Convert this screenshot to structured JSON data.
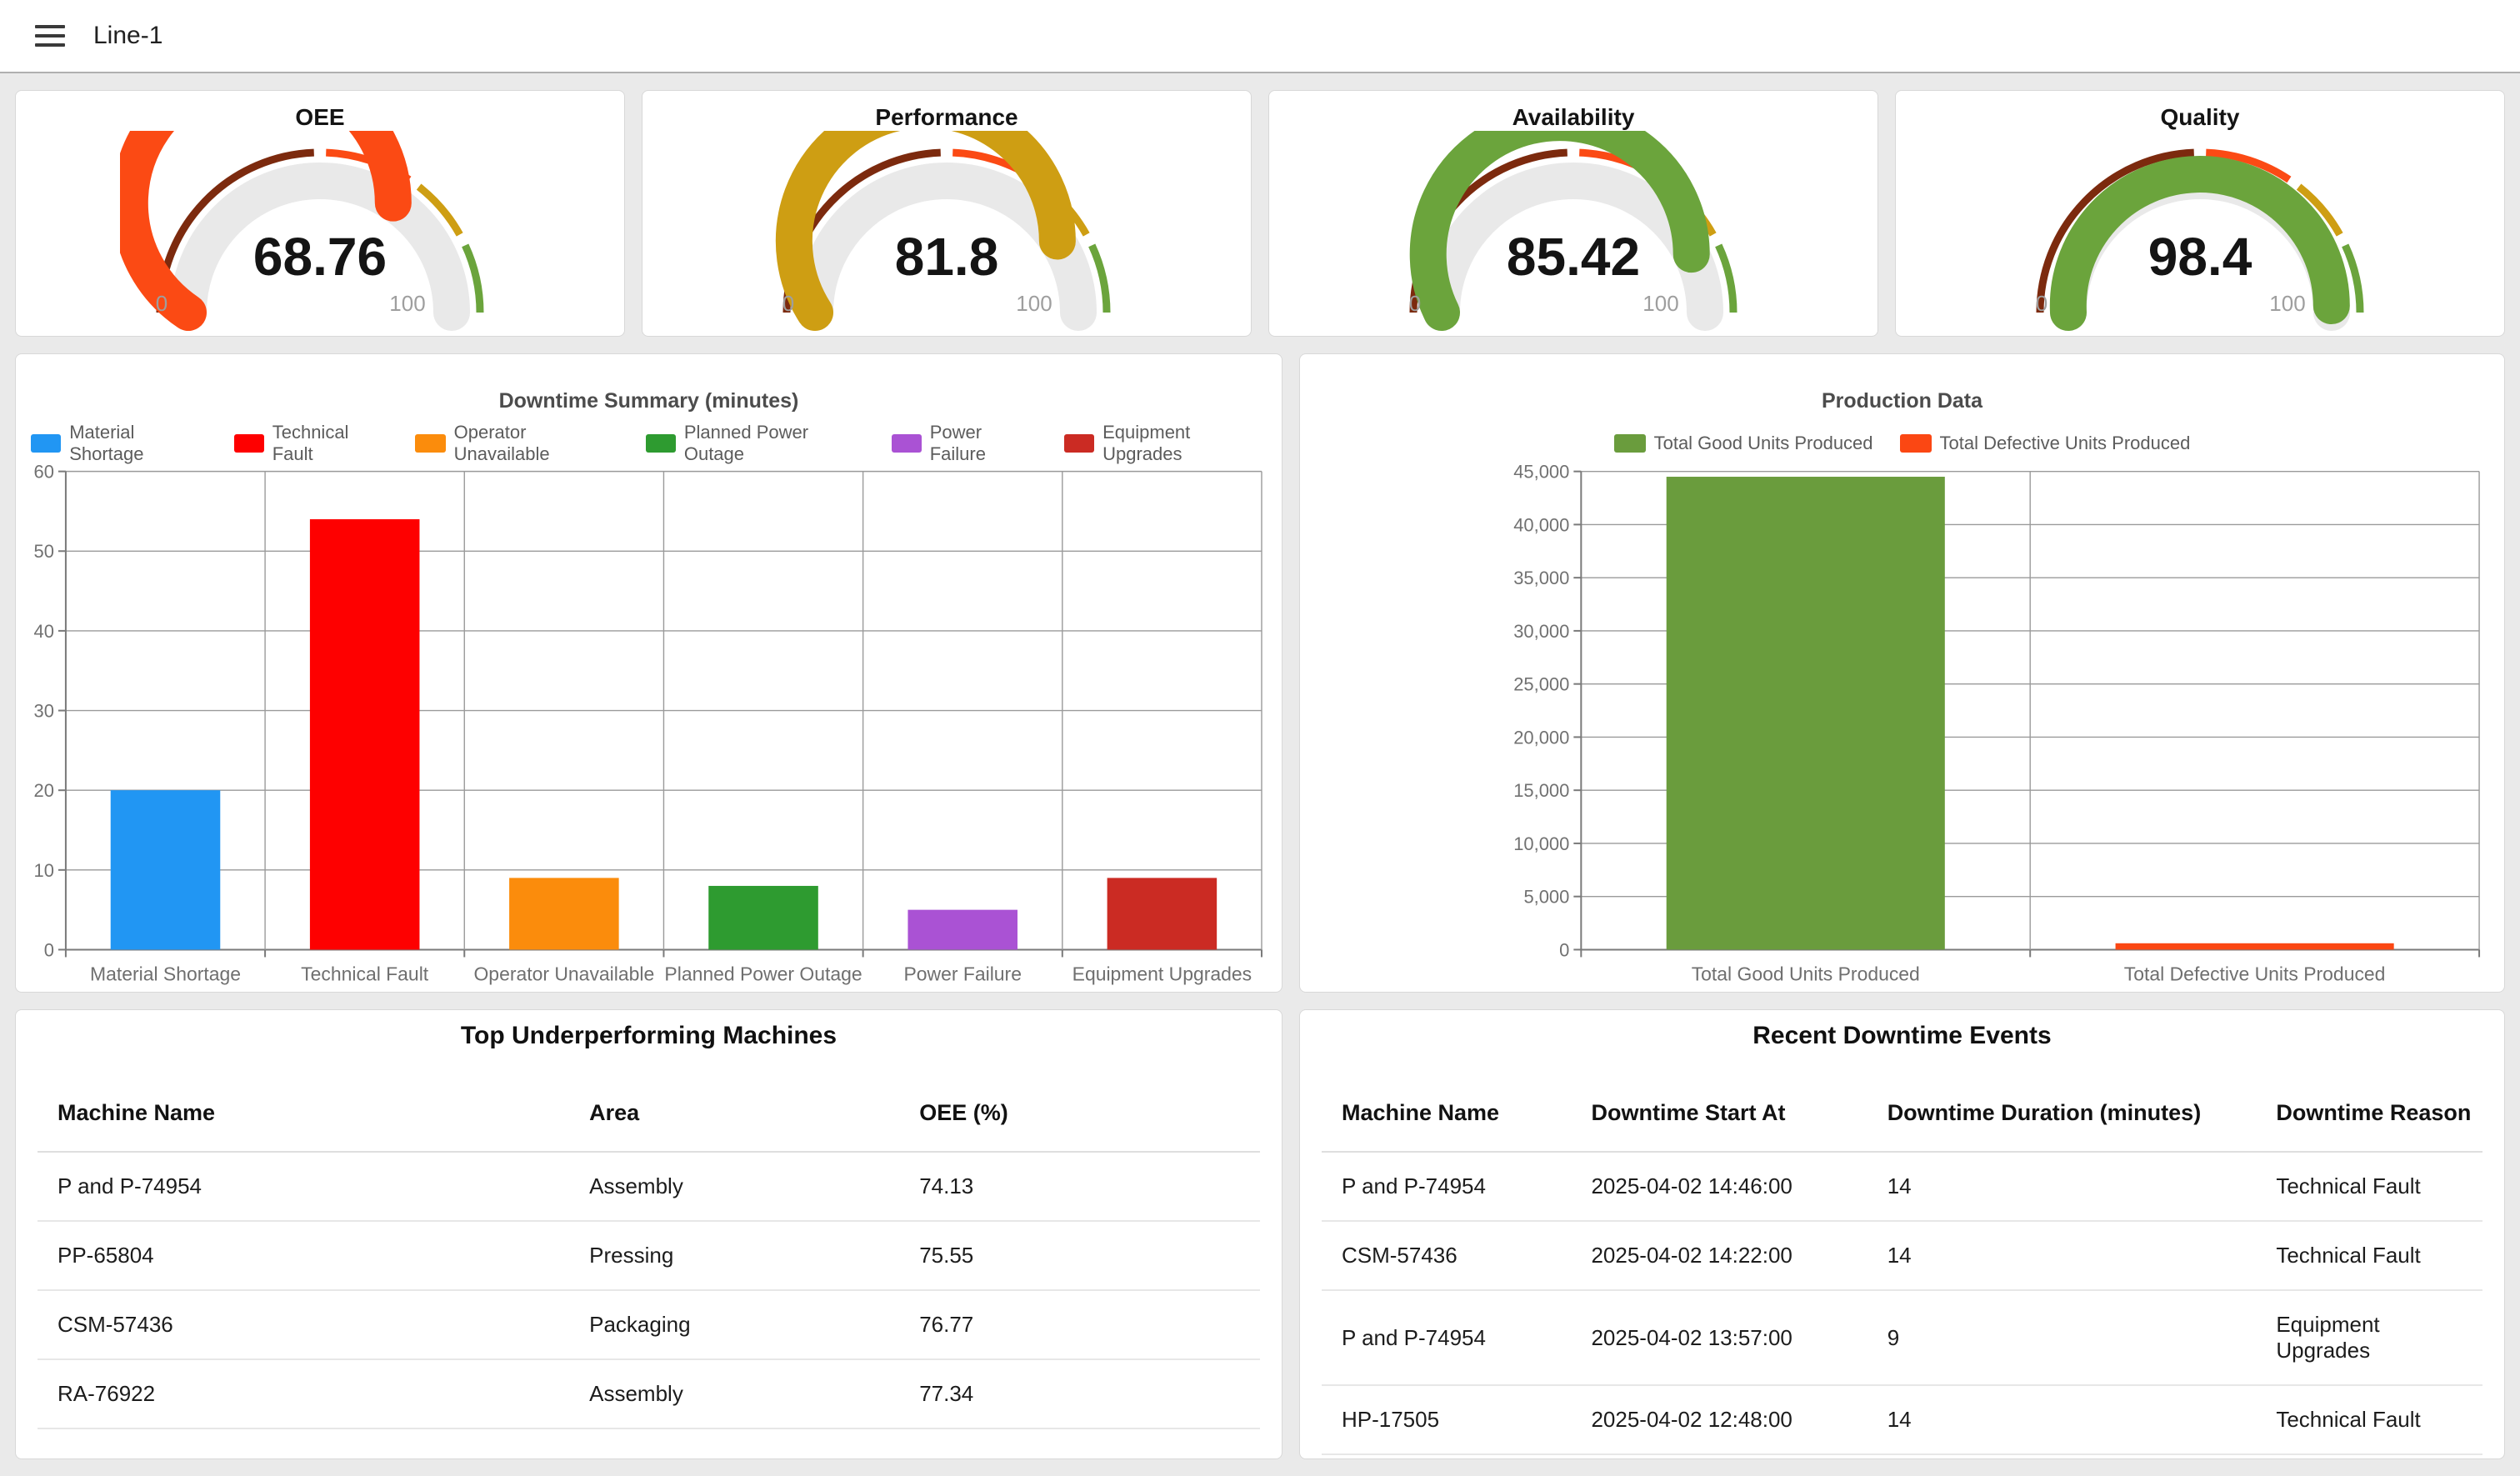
{
  "header": {
    "title": "Line-1",
    "menu_icon": "hamburger-icon"
  },
  "chart_data": [
    {
      "id": "gauge-oee",
      "type": "gauge",
      "title": "OEE",
      "value": "68.76",
      "min": 0,
      "max": 100,
      "min_label": "0",
      "max_label": "100",
      "bands": [
        {
          "upto": 50,
          "color": "#7C2A0E"
        },
        {
          "upto": 70,
          "color": "#FB4A14"
        },
        {
          "upto": 85,
          "color": "#CE9E13"
        },
        {
          "upto": 100,
          "color": "#6BA43C"
        }
      ],
      "track_color": "#E9E9E9"
    },
    {
      "id": "gauge-performance",
      "type": "gauge",
      "title": "Performance",
      "value": "81.8",
      "min": 0,
      "max": 100,
      "min_label": "0",
      "max_label": "100",
      "bands": [
        {
          "upto": 50,
          "color": "#7C2A0E"
        },
        {
          "upto": 70,
          "color": "#FB4A14"
        },
        {
          "upto": 85,
          "color": "#CE9E13"
        },
        {
          "upto": 100,
          "color": "#6BA43C"
        }
      ],
      "track_color": "#E9E9E9"
    },
    {
      "id": "gauge-availability",
      "type": "gauge",
      "title": "Availability",
      "value": "85.42",
      "min": 0,
      "max": 100,
      "min_label": "0",
      "max_label": "100",
      "bands": [
        {
          "upto": 50,
          "color": "#7C2A0E"
        },
        {
          "upto": 70,
          "color": "#FB4A14"
        },
        {
          "upto": 85,
          "color": "#CE9E13"
        },
        {
          "upto": 100,
          "color": "#6BA43C"
        }
      ],
      "track_color": "#E9E9E9"
    },
    {
      "id": "gauge-quality",
      "type": "gauge",
      "title": "Quality",
      "value": "98.4",
      "min": 0,
      "max": 100,
      "min_label": "0",
      "max_label": "100",
      "bands": [
        {
          "upto": 50,
          "color": "#7C2A0E"
        },
        {
          "upto": 70,
          "color": "#FB4A14"
        },
        {
          "upto": 85,
          "color": "#CE9E13"
        },
        {
          "upto": 100,
          "color": "#6BA43C"
        }
      ],
      "track_color": "#E9E9E9"
    },
    {
      "id": "downtime-summary",
      "type": "bar",
      "title": "Downtime Summary (minutes)",
      "categories": [
        "Material Shortage",
        "Technical Fault",
        "Operator Unavailable",
        "Planned Power Outage",
        "Power Failure",
        "Equipment Upgrades"
      ],
      "values": [
        20,
        54,
        9,
        8,
        5,
        9
      ],
      "colors": [
        "#2196F3",
        "#FE0000",
        "#FB8C0C",
        "#2E9B30",
        "#AA52D4",
        "#CB2B23"
      ],
      "legend": [
        "Material Shortage",
        "Technical Fault",
        "Operator Unavailable",
        "Planned Power Outage",
        "Power Failure",
        "Equipment Upgrades"
      ],
      "legend_position": "top",
      "xlabel": "",
      "ylabel": "",
      "ylim": [
        0,
        60
      ],
      "ytick_step": 10,
      "grid": true,
      "ylabel_format": "plain",
      "bar_frac": 0.55
    },
    {
      "id": "production-data",
      "type": "bar",
      "title": "Production Data",
      "categories": [
        "Total Good Units Produced",
        "Total Defective Units Produced"
      ],
      "values": [
        44500,
        600
      ],
      "colors": [
        "#6A9C3D",
        "#FB4713"
      ],
      "legend": [
        "Total Good Units Produced",
        "Total Defective Units Produced"
      ],
      "legend_position": "top",
      "xlabel": "",
      "ylabel": "",
      "ylim": [
        0,
        45000
      ],
      "ytick_step": 5000,
      "grid": true,
      "ylabel_format": "thousands",
      "bar_frac": 0.62
    }
  ],
  "tables": [
    {
      "id": "top-underperforming-machines",
      "title": "Top Underperforming Machines",
      "columns": [
        "Machine Name",
        "Area",
        "OEE (%)"
      ],
      "col_widths": [
        "43.5%",
        "27%",
        "29.5%"
      ],
      "rows": [
        [
          "P and P-74954",
          "Assembly",
          "74.13"
        ],
        [
          "PP-65804",
          "Pressing",
          "75.55"
        ],
        [
          "CSM-57436",
          "Packaging",
          "76.77"
        ],
        [
          "RA-76922",
          "Assembly",
          "77.34"
        ]
      ]
    },
    {
      "id": "recent-downtime-events",
      "title": "Recent Downtime Events",
      "columns": [
        "Machine Name",
        "Downtime Start At",
        "Downtime Duration (minutes)",
        "Downtime Reason"
      ],
      "col_widths": [
        "21.5%",
        "25.5%",
        "33.5%",
        "19.5%"
      ],
      "rows": [
        [
          "P and P-74954",
          "2025-04-02 14:46:00",
          "14",
          "Technical Fault"
        ],
        [
          "CSM-57436",
          "2025-04-02 14:22:00",
          "14",
          "Technical Fault"
        ],
        [
          "P and P-74954",
          "2025-04-02 13:57:00",
          "9",
          "Equipment Upgrades"
        ],
        [
          "HP-17505",
          "2025-04-02 12:48:00",
          "14",
          "Technical Fault"
        ]
      ]
    }
  ]
}
